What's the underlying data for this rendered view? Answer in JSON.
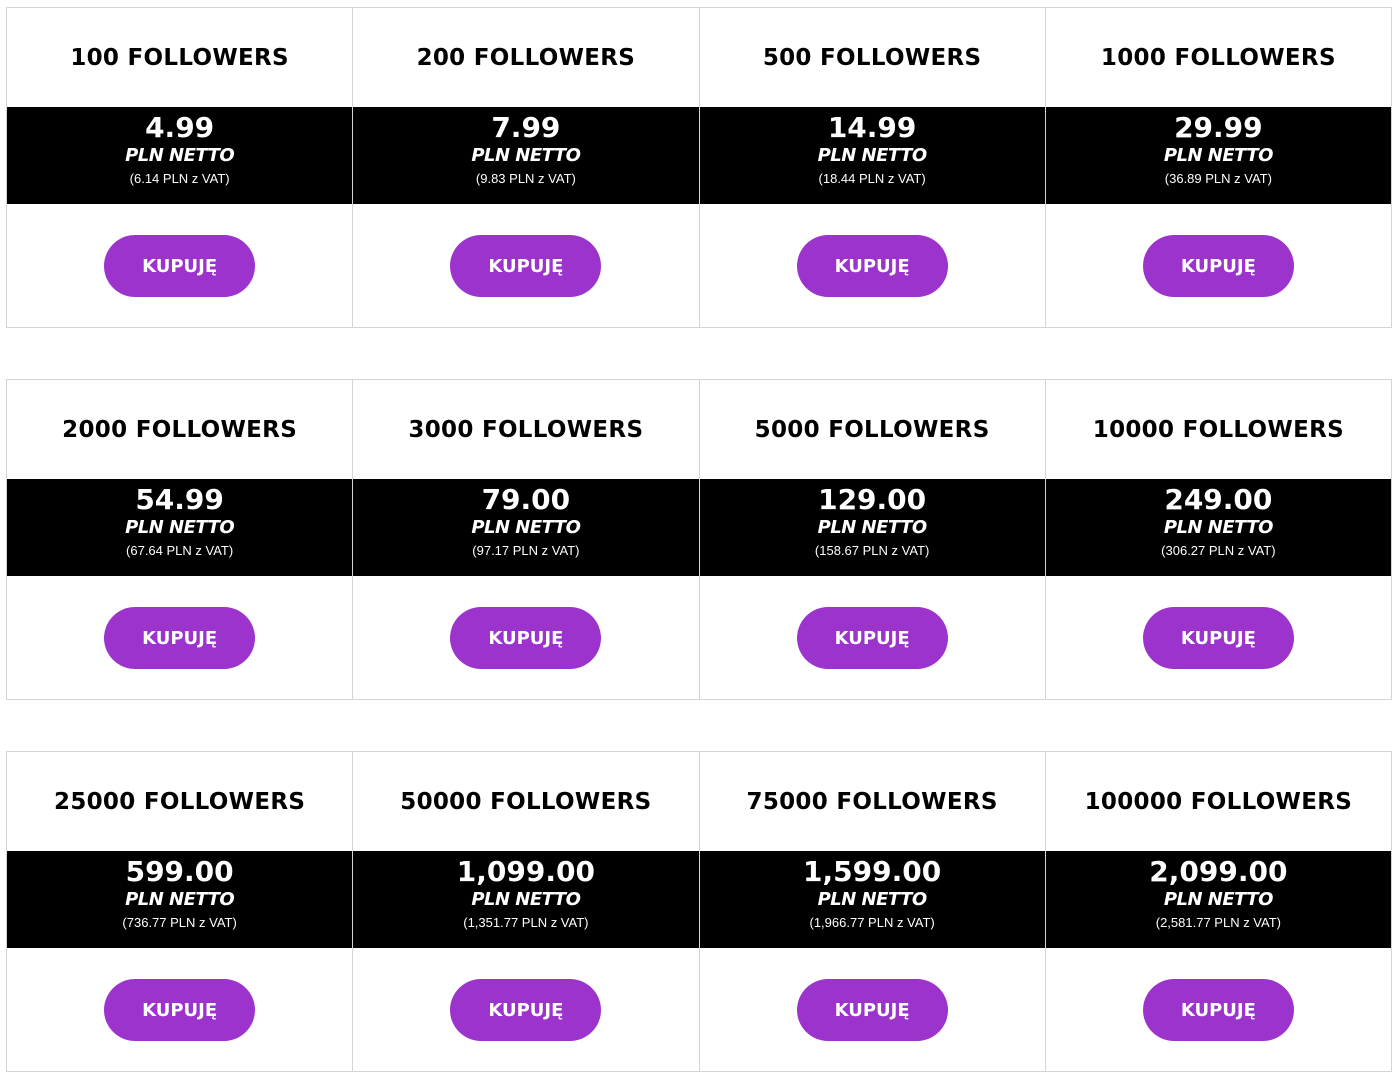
{
  "button_label": "KUPUJĘ",
  "accent_color": "#9b33cc",
  "rows": [
    [
      {
        "title": "100 FOLLOWERS",
        "price": "4.99",
        "unit": "PLN NETTO",
        "vat": "(6.14 PLN z VAT)"
      },
      {
        "title": "200 FOLLOWERS",
        "price": "7.99",
        "unit": "PLN NETTO",
        "vat": "(9.83 PLN z VAT)"
      },
      {
        "title": "500 FOLLOWERS",
        "price": "14.99",
        "unit": "PLN NETTO",
        "vat": "(18.44 PLN z VAT)"
      },
      {
        "title": "1000 FOLLOWERS",
        "price": "29.99",
        "unit": "PLN NETTO",
        "vat": "(36.89 PLN z VAT)"
      }
    ],
    [
      {
        "title": "2000 FOLLOWERS",
        "price": "54.99",
        "unit": "PLN NETTO",
        "vat": "(67.64 PLN z VAT)"
      },
      {
        "title": "3000 FOLLOWERS",
        "price": "79.00",
        "unit": "PLN NETTO",
        "vat": "(97.17 PLN z VAT)"
      },
      {
        "title": "5000 FOLLOWERS",
        "price": "129.00",
        "unit": "PLN NETTO",
        "vat": "(158.67 PLN z VAT)"
      },
      {
        "title": "10000 FOLLOWERS",
        "price": "249.00",
        "unit": "PLN NETTO",
        "vat": "(306.27 PLN z VAT)"
      }
    ],
    [
      {
        "title": "25000 FOLLOWERS",
        "price": "599.00",
        "unit": "PLN NETTO",
        "vat": "(736.77 PLN z VAT)"
      },
      {
        "title": "50000 FOLLOWERS",
        "price": "1,099.00",
        "unit": "PLN NETTO",
        "vat": "(1,351.77 PLN z VAT)"
      },
      {
        "title": "75000 FOLLOWERS",
        "price": "1,599.00",
        "unit": "PLN NETTO",
        "vat": "(1,966.77 PLN z VAT)"
      },
      {
        "title": "100000 FOLLOWERS",
        "price": "2,099.00",
        "unit": "PLN NETTO",
        "vat": "(2,581.77 PLN z VAT)"
      }
    ]
  ]
}
